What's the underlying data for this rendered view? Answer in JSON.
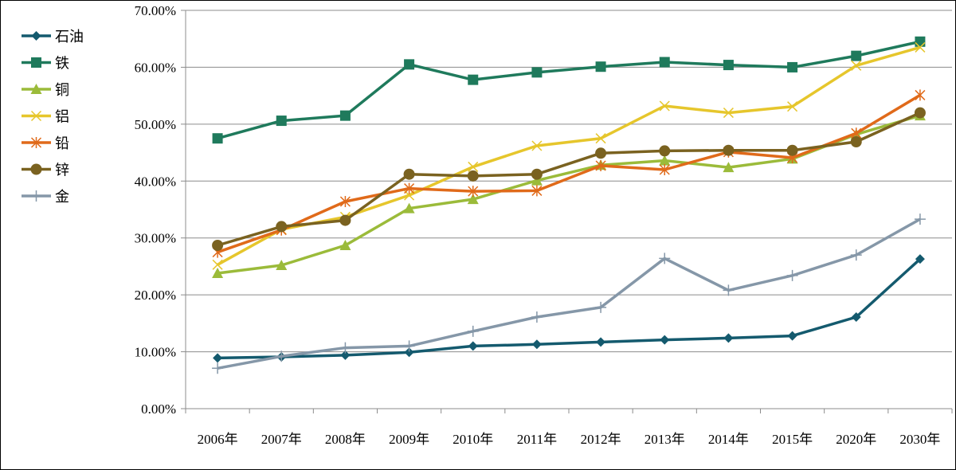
{
  "chart_data": {
    "type": "line",
    "categories": [
      "2006年",
      "2007年",
      "2008年",
      "2009年",
      "2010年",
      "2011年",
      "2012年",
      "2013年",
      "2014年",
      "2015年",
      "2020年",
      "2030年"
    ],
    "ylim": [
      0,
      0.7
    ],
    "yticks": [
      0,
      0.1,
      0.2,
      0.3,
      0.4,
      0.5,
      0.6,
      0.7
    ],
    "ytick_labels": [
      "0.00%",
      "10.00%",
      "20.00%",
      "30.00%",
      "40.00%",
      "50.00%",
      "60.00%",
      "70.00%"
    ],
    "grid": true,
    "legend_position": "left",
    "series": [
      {
        "name": "石油",
        "color": "#145a6e",
        "marker": "diamond",
        "values": [
          0.089,
          0.091,
          0.094,
          0.099,
          0.11,
          0.113,
          0.117,
          0.121,
          0.124,
          0.128,
          0.161,
          0.263
        ]
      },
      {
        "name": "铁",
        "color": "#1f7a5c",
        "marker": "square",
        "values": [
          0.475,
          0.506,
          0.515,
          0.605,
          0.578,
          0.591,
          0.601,
          0.609,
          0.604,
          0.6,
          0.62,
          0.645
        ]
      },
      {
        "name": "铜",
        "color": "#9bbb3a",
        "marker": "triangle",
        "values": [
          0.238,
          0.252,
          0.287,
          0.352,
          0.368,
          0.401,
          0.428,
          0.436,
          0.424,
          0.439,
          0.482,
          0.515
        ]
      },
      {
        "name": "铝",
        "color": "#e6c62c",
        "marker": "x",
        "values": [
          0.253,
          0.315,
          0.337,
          0.375,
          0.425,
          0.462,
          0.475,
          0.532,
          0.52,
          0.531,
          0.603,
          0.635
        ]
      },
      {
        "name": "铅",
        "color": "#e06a1a",
        "marker": "star",
        "values": [
          0.275,
          0.314,
          0.364,
          0.387,
          0.382,
          0.383,
          0.427,
          0.42,
          0.451,
          0.441,
          0.484,
          0.551
        ]
      },
      {
        "name": "锌",
        "color": "#7a6220",
        "marker": "circle",
        "values": [
          0.287,
          0.32,
          0.331,
          0.412,
          0.409,
          0.412,
          0.449,
          0.453,
          0.454,
          0.454,
          0.469,
          0.52
        ]
      },
      {
        "name": "金",
        "color": "#8597a8",
        "marker": "plus",
        "values": [
          0.071,
          0.092,
          0.107,
          0.11,
          0.136,
          0.161,
          0.178,
          0.264,
          0.208,
          0.234,
          0.27,
          0.333
        ]
      }
    ]
  }
}
